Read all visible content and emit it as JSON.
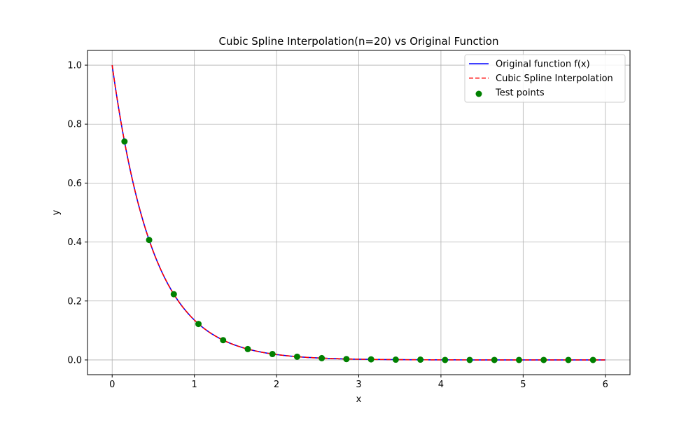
{
  "chart_data": {
    "type": "line",
    "title": "Cubic Spline Interpolation(n=20) vs Original Function",
    "xlabel": "x",
    "ylabel": "y",
    "xlim": [
      -0.3,
      6.3
    ],
    "ylim": [
      -0.05,
      1.05
    ],
    "xticks": [
      0,
      1,
      2,
      3,
      4,
      5,
      6
    ],
    "yticks": [
      0.0,
      0.2,
      0.4,
      0.6,
      0.8,
      1.0
    ],
    "xtick_labels": [
      "0",
      "1",
      "2",
      "3",
      "4",
      "5",
      "6"
    ],
    "ytick_labels": [
      "0.0",
      "0.2",
      "0.4",
      "0.6",
      "0.8",
      "1.0"
    ],
    "grid": true,
    "legend_position": "top-right",
    "series": [
      {
        "name": "Original function f(x)",
        "kind": "line",
        "style": "solid",
        "color": "#0000ff",
        "function": "exp(-2x)",
        "x_range": [
          0,
          6
        ]
      },
      {
        "name": "Cubic Spline Interpolation",
        "kind": "line",
        "style": "dashed",
        "color": "#ff0000",
        "function": "exp(-2x)",
        "x_range": [
          0,
          6
        ]
      },
      {
        "name": "Test points",
        "kind": "scatter",
        "color": "#008000",
        "x": [
          0.15,
          0.45,
          0.75,
          1.05,
          1.35,
          1.65,
          1.95,
          2.25,
          2.55,
          2.85,
          3.15,
          3.45,
          3.75,
          4.05,
          4.35,
          4.65,
          4.95,
          5.25,
          5.55,
          5.85
        ],
        "y": [
          0.741,
          0.407,
          0.223,
          0.122,
          0.067,
          0.037,
          0.02,
          0.011,
          0.006,
          0.003,
          0.002,
          0.001,
          0.001,
          0.0,
          0.0,
          0.0,
          0.0,
          0.0,
          0.0,
          0.0
        ]
      }
    ]
  }
}
